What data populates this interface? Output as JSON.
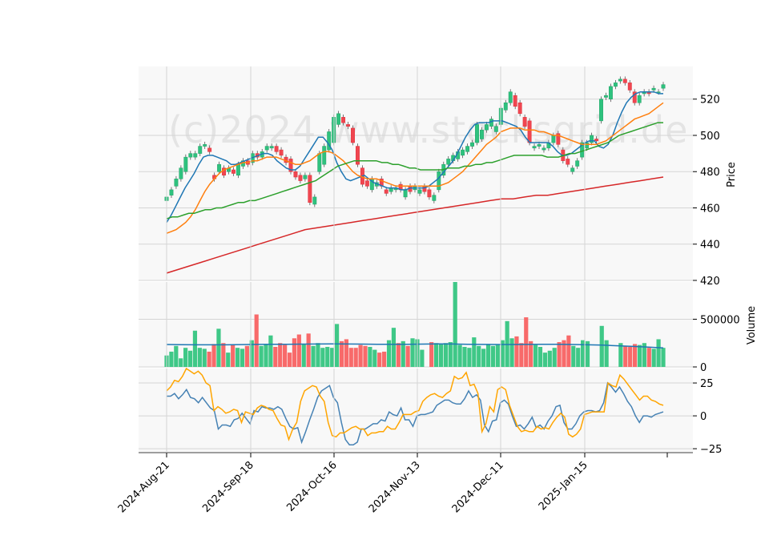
{
  "chart_data": [
    {
      "panel": "price",
      "type": "candlestick",
      "watermark": "(c)2024 www.stocksgrid.de",
      "ylabel": "Price",
      "ylim": [
        420,
        538
      ],
      "yticks": [
        420,
        440,
        460,
        480,
        500,
        520
      ],
      "grid": true,
      "candles": {
        "open": [
          464,
          467,
          472,
          476,
          480,
          488,
          488,
          490,
          494,
          493,
          478,
          480,
          482,
          480,
          481,
          478,
          483,
          486,
          485,
          490,
          488,
          492,
          493,
          494,
          492,
          488,
          487,
          480,
          478,
          476,
          478,
          462,
          480,
          484,
          492,
          496,
          506,
          510,
          506,
          504,
          494,
          482,
          475,
          470,
          472,
          476,
          470,
          469,
          470,
          473,
          466,
          472,
          470,
          468,
          472,
          470,
          464,
          470,
          478,
          484,
          486,
          487,
          489,
          491,
          494,
          496,
          498,
          503,
          505,
          502,
          506,
          514,
          518,
          522,
          518,
          510,
          508,
          493,
          494,
          492,
          493,
          496,
          501,
          492,
          487,
          480,
          483,
          488,
          493,
          496,
          498,
          508,
          521,
          520,
          527,
          530,
          531,
          529,
          524,
          518,
          523,
          524,
          525,
          524,
          526
        ],
        "close": [
          466,
          470,
          476,
          482,
          488,
          490,
          490,
          494,
          495,
          491,
          476,
          484,
          478,
          482,
          479,
          484,
          486,
          484,
          490,
          488,
          491,
          494,
          494,
          491,
          489,
          485,
          480,
          477,
          475,
          478,
          463,
          466,
          490,
          494,
          502,
          510,
          512,
          507,
          505,
          496,
          484,
          473,
          472,
          476,
          474,
          472,
          468,
          471,
          471,
          470,
          470,
          469,
          472,
          470,
          469,
          466,
          467,
          480,
          484,
          487,
          489,
          491,
          492,
          494,
          496,
          506,
          503,
          506,
          509,
          505,
          515,
          518,
          524,
          516,
          512,
          505,
          496,
          494,
          495,
          493,
          496,
          500,
          495,
          486,
          484,
          482,
          486,
          496,
          496,
          500,
          497,
          520,
          522,
          527,
          529,
          531,
          529,
          525,
          518,
          522,
          524,
          523,
          526,
          524,
          528
        ]
      },
      "ma_lines": [
        {
          "color": "#1f77b4",
          "values": [
            452,
            456,
            461,
            466,
            471,
            475,
            479,
            484,
            488,
            489,
            489,
            488,
            487,
            486,
            484,
            484,
            485,
            486,
            487,
            488,
            489,
            490,
            490,
            489,
            486,
            484,
            482,
            481,
            481,
            483,
            487,
            491,
            495,
            499,
            499,
            496,
            492,
            485,
            480,
            476,
            475,
            476,
            477,
            478,
            476,
            474,
            473,
            472,
            471,
            471,
            471,
            470,
            470,
            471,
            471,
            471,
            471,
            472,
            474,
            476,
            479,
            482,
            485,
            489,
            494,
            499,
            503,
            506,
            507,
            507,
            507,
            508,
            508,
            508,
            507,
            506,
            505,
            503,
            499,
            496,
            496,
            496,
            496,
            496,
            494,
            491,
            489,
            489,
            490,
            492,
            494,
            496,
            497,
            497,
            494,
            493,
            495,
            500,
            507,
            513,
            518,
            521,
            523,
            524,
            524,
            524,
            524,
            523,
            523
          ]
        },
        {
          "color": "#ff7f0e",
          "values": [
            446,
            447,
            448,
            450,
            452,
            455,
            459,
            464,
            469,
            473,
            476,
            479,
            481,
            482,
            483,
            484,
            485,
            485,
            486,
            486,
            487,
            488,
            488,
            488,
            487,
            486,
            485,
            484,
            484,
            485,
            486,
            488,
            490,
            491,
            491,
            490,
            488,
            486,
            483,
            480,
            478,
            477,
            476,
            476,
            476,
            475,
            474,
            473,
            472,
            472,
            472,
            472,
            472,
            472,
            472,
            472,
            472,
            472,
            473,
            474,
            476,
            478,
            480,
            483,
            486,
            489,
            492,
            495,
            497,
            499,
            502,
            503,
            504,
            504,
            504,
            503,
            503,
            503,
            502,
            502,
            501,
            500,
            500,
            499,
            498,
            497,
            496,
            495,
            495,
            495,
            495,
            496,
            497,
            499,
            501,
            503,
            505,
            507,
            509,
            510,
            511,
            512,
            514,
            516,
            518
          ]
        },
        {
          "color": "#2ca02c",
          "values": [
            454,
            455,
            455,
            456,
            457,
            457,
            458,
            459,
            459,
            460,
            460,
            461,
            462,
            463,
            463,
            464,
            464,
            465,
            466,
            467,
            468,
            469,
            470,
            471,
            472,
            473,
            474,
            475,
            477,
            479,
            481,
            483,
            484,
            485,
            486,
            486,
            486,
            486,
            486,
            485,
            485,
            484,
            484,
            483,
            482,
            482,
            481,
            481,
            481,
            481,
            481,
            482,
            482,
            482,
            483,
            483,
            484,
            484,
            485,
            485,
            486,
            487,
            488,
            489,
            489,
            489,
            489,
            489,
            489,
            488,
            488,
            488,
            489,
            490,
            490,
            491,
            492,
            493,
            494,
            495,
            496,
            498,
            500,
            501,
            502,
            503,
            504,
            505,
            506,
            507,
            507
          ]
        },
        {
          "color": "#d62728",
          "values": [
            424,
            426,
            428,
            430,
            432,
            434,
            436,
            438,
            440,
            442,
            444,
            446,
            448,
            449,
            450,
            451,
            452,
            453,
            454,
            455,
            456,
            457,
            458,
            459,
            460,
            461,
            462,
            463,
            464,
            465,
            465,
            466,
            467,
            467,
            468,
            469,
            470,
            471,
            472,
            473,
            474,
            475,
            476,
            477
          ]
        }
      ]
    },
    {
      "panel": "volume",
      "type": "bar",
      "ylabel": "Volume",
      "ylim": [
        0,
        890000
      ],
      "yticks": [
        0,
        500000
      ],
      "yticklabels": [
        "0",
        "500000"
      ],
      "values": [
        120000,
        160000,
        220000,
        90000,
        200000,
        170000,
        380000,
        200000,
        190000,
        160000,
        240000,
        400000,
        250000,
        150000,
        230000,
        200000,
        190000,
        220000,
        280000,
        550000,
        220000,
        240000,
        330000,
        210000,
        250000,
        230000,
        150000,
        300000,
        340000,
        240000,
        350000,
        220000,
        250000,
        200000,
        210000,
        200000,
        450000,
        270000,
        290000,
        200000,
        200000,
        230000,
        220000,
        210000,
        180000,
        150000,
        160000,
        280000,
        410000,
        250000,
        270000,
        220000,
        300000,
        290000,
        180000,
        0,
        260000,
        250000,
        240000,
        250000,
        260000,
        890000,
        230000,
        210000,
        200000,
        310000,
        220000,
        190000,
        240000,
        220000,
        230000,
        280000,
        480000,
        300000,
        320000,
        250000,
        520000,
        270000,
        230000,
        210000,
        150000,
        170000,
        200000,
        260000,
        280000,
        330000,
        220000,
        200000,
        280000,
        270000,
        0,
        0,
        430000,
        280000,
        0,
        0,
        250000,
        220000,
        210000,
        240000,
        230000,
        250000,
        200000,
        190000,
        290000,
        200000
      ],
      "ma_line": {
        "color": "#1f77b4",
        "values": [
          235000,
          233000,
          232000,
          232000,
          232000,
          234000,
          236000,
          237000,
          238000,
          239000,
          240000,
          241000,
          240000,
          239000,
          238000,
          238000,
          238000,
          239000,
          241000,
          240000,
          238000,
          236000,
          235000,
          235000,
          236000,
          238000,
          237000,
          235000,
          232000,
          228000,
          222000,
          215000,
          207000,
          200000
        ]
      }
    },
    {
      "panel": "oscillator",
      "type": "line",
      "ylim": [
        -28,
        36
      ],
      "yticks": [
        -25,
        0,
        25
      ],
      "yticklabels": [
        "−25",
        "0",
        "25"
      ],
      "series": [
        {
          "color": "#4682b4",
          "values": [
            15,
            15,
            17,
            13,
            16,
            20,
            14,
            13,
            10,
            14,
            10,
            6,
            4,
            -10,
            -7,
            -7,
            -8,
            -3,
            -2,
            2,
            -2,
            -6,
            4,
            3,
            7,
            6,
            6,
            5,
            7,
            5,
            -2,
            -8,
            -10,
            -9,
            -20,
            -12,
            -3,
            5,
            14,
            19,
            21,
            23,
            14,
            10,
            -5,
            -18,
            -22,
            -22,
            -20,
            -10,
            -10,
            -8,
            -6,
            -6,
            -3,
            -4,
            3,
            1,
            0,
            6,
            -3,
            -3,
            -8,
            0,
            1,
            1,
            2,
            3,
            8,
            10,
            12,
            12,
            10,
            9,
            9,
            13,
            19,
            14,
            16,
            12,
            -7,
            -12,
            -4,
            -3,
            10,
            12,
            9,
            0,
            -8,
            -7,
            -10,
            -6,
            -1,
            -9,
            -7,
            -10,
            -4,
            0,
            7,
            8,
            -5,
            -10,
            -10,
            -6,
            0,
            3,
            4,
            4,
            3,
            4,
            10,
            25,
            22,
            18,
            22,
            17,
            11,
            7,
            0,
            -5,
            0,
            0,
            -1,
            1,
            2,
            3
          ]
        },
        {
          "color": "#ffa500",
          "values": [
            19,
            22,
            27,
            26,
            30,
            36,
            34,
            32,
            34,
            31,
            25,
            23,
            4,
            7,
            5,
            2,
            3,
            5,
            4,
            -5,
            3,
            2,
            1,
            6,
            8,
            7,
            5,
            4,
            -2,
            -7,
            -8,
            -18,
            -10,
            -5,
            11,
            19,
            21,
            23,
            22,
            15,
            11,
            -5,
            -15,
            -16,
            -13,
            -13,
            -11,
            -9,
            -8,
            -10,
            -10,
            -15,
            -13,
            -13,
            -12,
            -12,
            -8,
            -10,
            -10,
            -5,
            1,
            1,
            1,
            3,
            4,
            11,
            14,
            16,
            17,
            15,
            14,
            17,
            19,
            30,
            28,
            29,
            33,
            23,
            24,
            17,
            -12,
            -6,
            7,
            3,
            20,
            22,
            20,
            8,
            0,
            -8,
            -12,
            -11,
            -12,
            -12,
            -8,
            -10,
            -9,
            -10,
            -5,
            -1,
            2,
            -1,
            -14,
            -16,
            -14,
            -10,
            1,
            2,
            3,
            3,
            3,
            3,
            25,
            23,
            22,
            31,
            28,
            24,
            20,
            16,
            12,
            15,
            15,
            12,
            11,
            9,
            8
          ]
        }
      ]
    },
    {
      "panel": "x-axis",
      "type": "axis",
      "xticklabels": [
        "2024-Aug-21",
        "2024-Sep-18",
        "2024-Oct-16",
        "2024-Nov-13",
        "2024-Dec-11",
        "2025-Jan-15"
      ]
    }
  ]
}
